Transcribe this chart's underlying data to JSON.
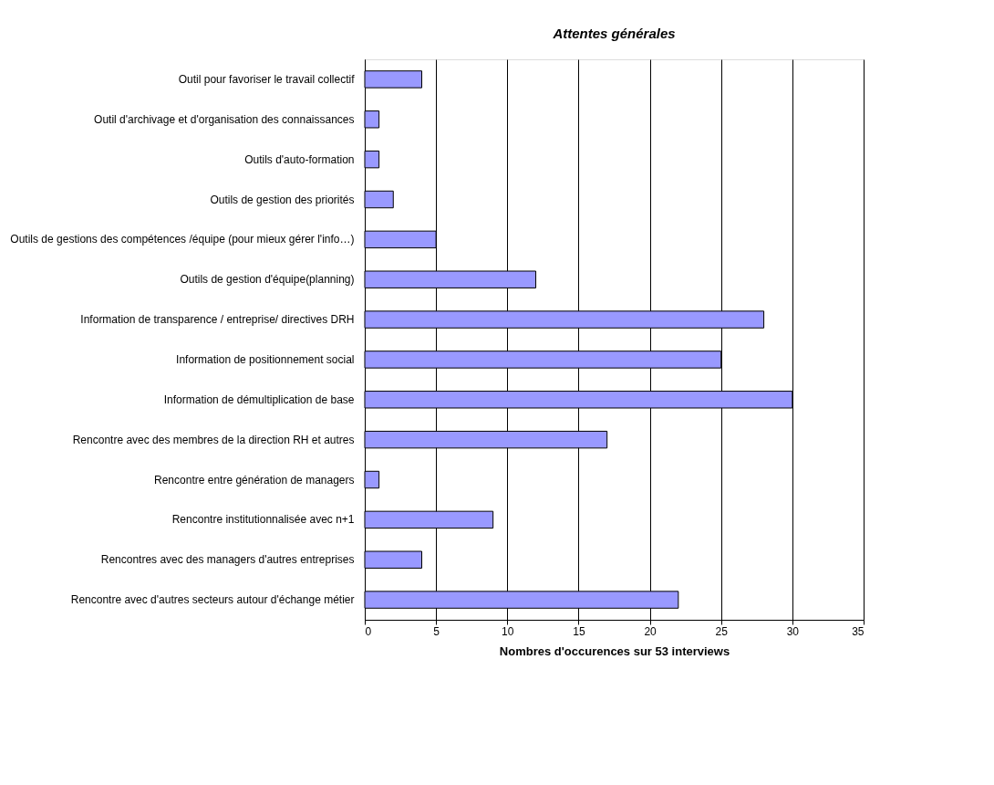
{
  "chart_data": {
    "type": "bar",
    "orientation": "horizontal",
    "title": "Attentes générales",
    "xlabel": "Nombres d'occurences sur 53 interviews",
    "categories": [
      "Outil pour favoriser le travail collectif",
      "Outil d'archivage et d'organisation des connaissances",
      "Outils d'auto-formation",
      "Outils de gestion des priorités",
      "Outils de gestions des compétences /équipe (pour mieux gérer l'info…)",
      "Outils de gestion d'équipe(planning)",
      "Information de transparence / entreprise/ directives DRH",
      "Information de positionnement social",
      "Information de démultiplication de base",
      "Rencontre avec des membres de la direction RH et autres",
      "Rencontre entre génération de managers",
      "Rencontre institutionnalisée avec n+1",
      "Rencontres avec des managers d'autres entreprises",
      "Rencontre avec d'autres secteurs autour d'échange métier"
    ],
    "values": [
      4,
      1,
      1,
      2,
      5,
      12,
      28,
      25,
      30,
      17,
      1,
      9,
      4,
      22
    ],
    "color": "#9999ff",
    "xlim": [
      0,
      35
    ],
    "xticks": [
      0,
      5,
      10,
      15,
      20,
      25,
      30,
      35
    ],
    "grid": "x"
  }
}
